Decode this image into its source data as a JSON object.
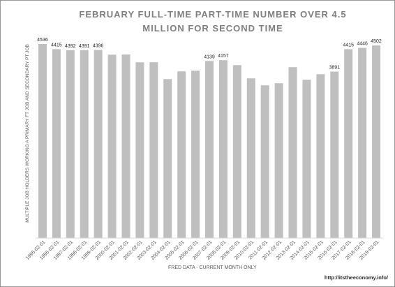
{
  "chart_data": {
    "type": "bar",
    "title": "FEBRUARY FULL-TIME PART-TIME NUMBER OVER 4.5 MILLION FOR SECOND TIME",
    "y_label": "MULTIPLE JOB HOLDERS WORKING A PRIMARY FT JOB AND SECONDARY PT JOB",
    "x_label": "FRED DATA - CURRENT MONTH ONLY",
    "source": "http://itstheeconomy.info/",
    "color": "#bfbfbf",
    "categories": [
      "1995-02-01",
      "1996-02-01",
      "1997-02-01",
      "1998-02-01",
      "1999-02-01",
      "2000-02-01",
      "2001-02-01",
      "2002-02-01",
      "2003-02-01",
      "2004-02-01",
      "2005-02-01",
      "2006-02-01",
      "2007-02-01",
      "2008-02-01",
      "2009-02-01",
      "2010-02-01",
      "2011-02-01",
      "2012-02-01",
      "2013-02-01",
      "2014-02-01",
      "2015-02-01",
      "2016-02-01",
      "2017-02-01",
      "2018-02-01",
      "2019-02-01"
    ],
    "values": [
      4536,
      4415,
      4392,
      4391,
      4396,
      4287,
      4290,
      4108,
      4110,
      3716,
      3896,
      3912,
      4139,
      4157,
      4042,
      3733,
      3570,
      3619,
      3994,
      3700,
      3830,
      3891,
      4415,
      4446,
      4502
    ],
    "value_labels": [
      "4536",
      "4415",
      "4392",
      "4391",
      "4396",
      null,
      null,
      null,
      null,
      null,
      null,
      null,
      "4139",
      "4157",
      null,
      null,
      null,
      null,
      null,
      null,
      null,
      "3891",
      "4415",
      "4446",
      "4502"
    ]
  }
}
